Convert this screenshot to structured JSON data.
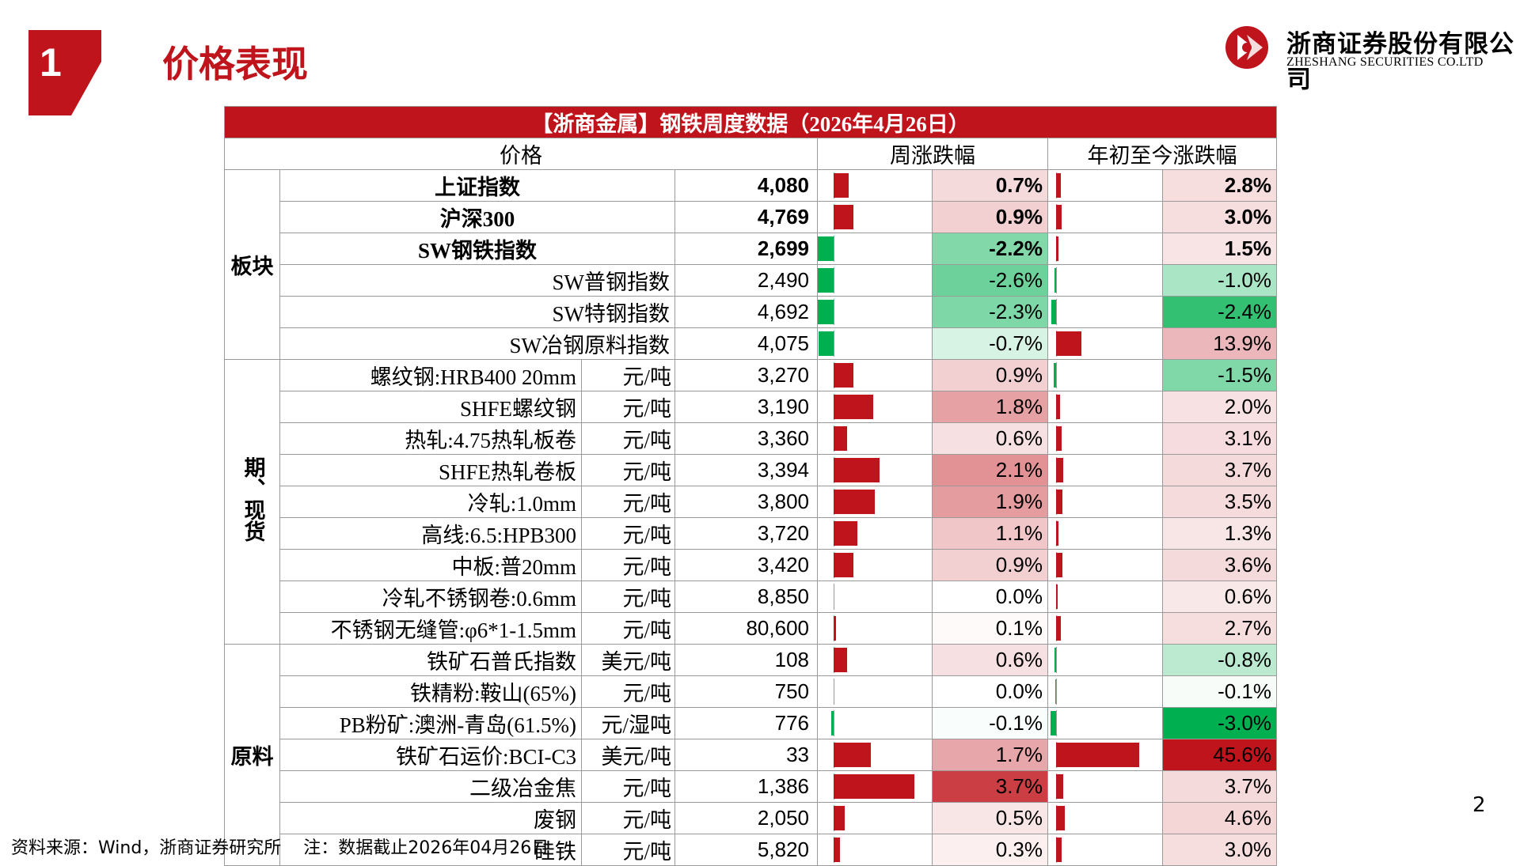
{
  "header": {
    "section_number": "1",
    "section_title": "价格表现",
    "brand_cn": "浙商证券股份有限公司",
    "brand_en": "ZHESHANG SECURITIES CO.LTD"
  },
  "table": {
    "title": "【浙商金属】钢铁周度数据（2026年4月26日）",
    "col_price": "价格",
    "col_week": "周涨跌幅",
    "col_ytd": "年初至今涨跌幅",
    "groups": [
      {
        "name": "板块",
        "rows": [
          {
            "name": "上证指数",
            "unit": "",
            "price": "4,080",
            "week": "0.7%",
            "ytd": "2.8%",
            "w": 0.7,
            "y": 2.8,
            "bold": true
          },
          {
            "name": "沪深300",
            "unit": "",
            "price": "4,769",
            "week": "0.9%",
            "ytd": "3.0%",
            "w": 0.9,
            "y": 3.0,
            "bold": true
          },
          {
            "name": "SW钢铁指数",
            "unit": "",
            "price": "2,699",
            "week": "-2.2%",
            "ytd": "1.5%",
            "w": -2.2,
            "y": 1.5,
            "bold": true
          },
          {
            "name": "SW普钢指数",
            "unit": "",
            "price": "2,490",
            "week": "-2.6%",
            "ytd": "-1.0%",
            "w": -2.6,
            "y": -1.0,
            "bold": false
          },
          {
            "name": "SW特钢指数",
            "unit": "",
            "price": "4,692",
            "week": "-2.3%",
            "ytd": "-2.4%",
            "w": -2.3,
            "y": -2.4,
            "bold": false
          },
          {
            "name": "SW冶钢原料指数",
            "unit": "",
            "price": "4,075",
            "week": "-0.7%",
            "ytd": "13.9%",
            "w": -0.7,
            "y": 13.9,
            "bold": false
          }
        ]
      },
      {
        "name": "期、现货",
        "rows": [
          {
            "name": "螺纹钢:HRB400 20mm",
            "unit": "元/吨",
            "price": "3,270",
            "week": "0.9%",
            "ytd": "-1.5%",
            "w": 0.9,
            "y": -1.5
          },
          {
            "name": "SHFE螺纹钢",
            "unit": "元/吨",
            "price": "3,190",
            "week": "1.8%",
            "ytd": "2.0%",
            "w": 1.8,
            "y": 2.0
          },
          {
            "name": "热轧:4.75热轧板卷",
            "unit": "元/吨",
            "price": "3,360",
            "week": "0.6%",
            "ytd": "3.1%",
            "w": 0.6,
            "y": 3.1
          },
          {
            "name": "SHFE热轧卷板",
            "unit": "元/吨",
            "price": "3,394",
            "week": "2.1%",
            "ytd": "3.7%",
            "w": 2.1,
            "y": 3.7
          },
          {
            "name": "冷轧:1.0mm",
            "unit": "元/吨",
            "price": "3,800",
            "week": "1.9%",
            "ytd": "3.5%",
            "w": 1.9,
            "y": 3.5
          },
          {
            "name": "高线:6.5:HPB300",
            "unit": "元/吨",
            "price": "3,720",
            "week": "1.1%",
            "ytd": "1.3%",
            "w": 1.1,
            "y": 1.3
          },
          {
            "name": "中板:普20mm",
            "unit": "元/吨",
            "price": "3,420",
            "week": "0.9%",
            "ytd": "3.6%",
            "w": 0.9,
            "y": 3.6
          },
          {
            "name": "冷轧不锈钢卷:0.6mm",
            "unit": "元/吨",
            "price": "8,850",
            "week": "0.0%",
            "ytd": "0.6%",
            "w": 0.0,
            "y": 0.6
          },
          {
            "name": "不锈钢无缝管:φ6*1-1.5mm",
            "unit": "元/吨",
            "price": "80,600",
            "week": "0.1%",
            "ytd": "2.7%",
            "w": 0.1,
            "y": 2.7
          }
        ]
      },
      {
        "name": "原料",
        "rows": [
          {
            "name": "铁矿石普氏指数",
            "unit": "美元/吨",
            "price": "108",
            "week": "0.6%",
            "ytd": "-0.8%",
            "w": 0.6,
            "y": -0.8
          },
          {
            "name": "铁精粉:鞍山(65%)",
            "unit": "元/吨",
            "price": "750",
            "week": "0.0%",
            "ytd": "-0.1%",
            "w": 0.0,
            "y": -0.1
          },
          {
            "name": "PB粉矿:澳洲-青岛(61.5%)",
            "unit": "元/湿吨",
            "price": "776",
            "week": "-0.1%",
            "ytd": "-3.0%",
            "w": -0.1,
            "y": -3.0
          },
          {
            "name": "铁矿石运价:BCI-C3",
            "unit": "美元/吨",
            "price": "33",
            "week": "1.7%",
            "ytd": "45.6%",
            "w": 1.7,
            "y": 45.6
          },
          {
            "name": "二级冶金焦",
            "unit": "元/吨",
            "price": "1,386",
            "week": "3.7%",
            "ytd": "3.7%",
            "w": 3.7,
            "y": 3.7
          },
          {
            "name": "废钢",
            "unit": "元/吨",
            "price": "2,050",
            "week": "0.5%",
            "ytd": "4.6%",
            "w": 0.5,
            "y": 4.6
          },
          {
            "name": "硅铁",
            "unit": "元/吨",
            "price": "5,820",
            "week": "0.3%",
            "ytd": "3.0%",
            "w": 0.3,
            "y": 3.0
          }
        ]
      }
    ]
  },
  "colors": {
    "red": "#c0141c",
    "green": "#00b050"
  },
  "page_number": "2",
  "footer": "资料来源：Wind，浙商证券研究所    注：数据截止2026年04月26日"
}
